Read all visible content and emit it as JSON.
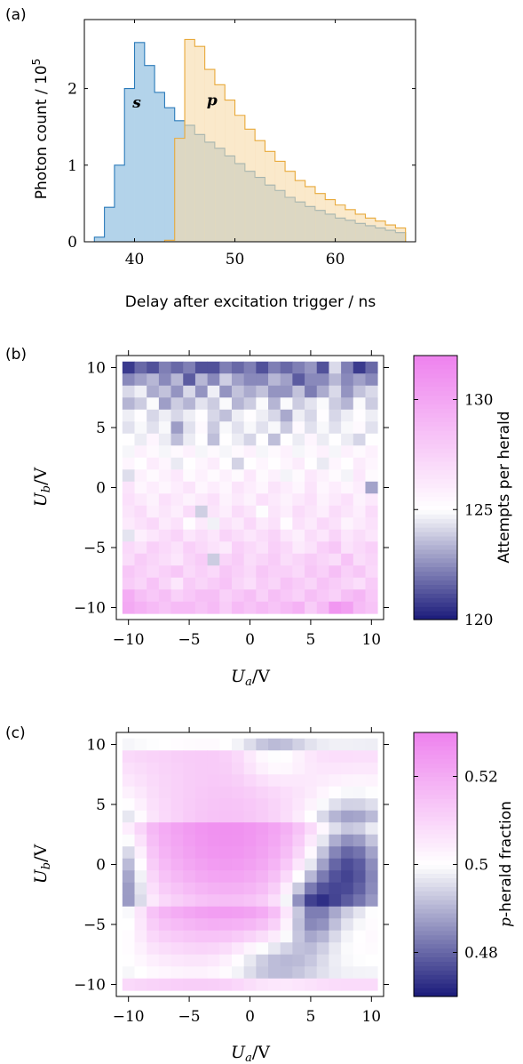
{
  "chart_data": [
    {
      "panel_label": "(a)",
      "type": "area",
      "xlabel": "Delay after excitation trigger / ns",
      "ylabel_base": "Photon count / 10",
      "ylabel_exp": "5",
      "xlim": [
        35,
        68
      ],
      "ylim": [
        0,
        2.9
      ],
      "xticks": [
        40,
        50,
        60
      ],
      "yticks": [
        0,
        1,
        2
      ],
      "bin_width": 1,
      "annotations": [
        "s",
        "p"
      ],
      "series": [
        {
          "name": "s",
          "color": "#2b7bba",
          "fill": "#b3d3ea",
          "bin_starts": [
            36,
            37,
            38,
            39,
            40,
            41,
            42,
            43,
            44,
            45,
            46,
            47,
            48,
            49,
            50,
            51,
            52,
            53,
            54,
            55,
            56,
            57,
            58,
            59,
            60,
            61,
            62,
            63,
            64,
            65,
            66
          ],
          "values": [
            0.06,
            0.45,
            1.0,
            2.0,
            2.6,
            2.3,
            1.95,
            1.75,
            1.58,
            1.52,
            1.4,
            1.3,
            1.22,
            1.12,
            1.02,
            0.92,
            0.84,
            0.74,
            0.67,
            0.58,
            0.52,
            0.46,
            0.41,
            0.36,
            0.31,
            0.28,
            0.24,
            0.21,
            0.18,
            0.15,
            0.12
          ]
        },
        {
          "name": "p",
          "color": "#e8a93a",
          "fill": "#f6dba8",
          "bin_starts": [
            43,
            44,
            45,
            46,
            47,
            48,
            49,
            50,
            51,
            52,
            53,
            54,
            55,
            56,
            57,
            58,
            59,
            60,
            61,
            62,
            63,
            64,
            65,
            66
          ],
          "values": [
            0.02,
            1.35,
            2.64,
            2.55,
            2.25,
            2.05,
            1.85,
            1.65,
            1.47,
            1.32,
            1.18,
            1.05,
            0.92,
            0.8,
            0.72,
            0.63,
            0.55,
            0.48,
            0.42,
            0.36,
            0.31,
            0.27,
            0.22,
            0.18
          ]
        }
      ]
    },
    {
      "panel_label": "(b)",
      "type": "heatmap",
      "xlabel_var": "U",
      "xlabel_sub": "a",
      "xlabel_unit": "/V",
      "ylabel_var": "U",
      "ylabel_sub": "b",
      "ylabel_unit": "/V",
      "xlim": [
        -11,
        11
      ],
      "ylim": [
        -11,
        11
      ],
      "xticks": [
        -10,
        -5,
        0,
        5,
        10
      ],
      "yticks": [
        -10,
        -5,
        0,
        5,
        10
      ],
      "tick_labels": [
        "−10",
        "−5",
        "0",
        "5",
        "10"
      ],
      "colorbar_label": "Attempts per herald",
      "colorbar_range": [
        120,
        132
      ],
      "colorbar_center": 125,
      "colorbar_ticks": [
        120,
        125,
        130
      ],
      "grid": {
        "rows": 21,
        "cols": 21,
        "x_start": -10,
        "y_start": 10,
        "step": 1,
        "baseline_top": 123.2,
        "baseline_bottom": 127.8,
        "offsets": [
          [
            -2.5,
            -1.5,
            -2,
            -1,
            -1.5,
            -1,
            -2,
            -2,
            -1,
            -1.5,
            -1,
            -2,
            -1,
            -1.5,
            -1,
            -0.5,
            -2,
            1,
            -1,
            -2.5,
            -1.5
          ],
          [
            -1,
            -0.5,
            0,
            -1,
            0,
            -2,
            0,
            -1,
            0.5,
            -0.5,
            -1,
            -1,
            0,
            -0.5,
            -2,
            -1,
            -1,
            0,
            -1,
            -0.5,
            -1
          ],
          [
            0.5,
            1,
            -0.5,
            0,
            -1,
            0.5,
            -1,
            1,
            -1,
            0,
            -0.5,
            0,
            -1,
            -1,
            0,
            -1.5,
            -0.5,
            0.5,
            -1,
            0,
            0.5
          ],
          [
            -0.5,
            0,
            1,
            -1,
            0,
            -0.5,
            0.5,
            0,
            1,
            -0.5,
            0,
            1,
            -0.5,
            1,
            0,
            0.5,
            1,
            0,
            -0.5,
            1,
            0
          ],
          [
            0.5,
            1,
            0,
            0.5,
            0,
            0.5,
            1,
            0,
            -0.5,
            0.5,
            1,
            0.5,
            0,
            -1,
            0.5,
            0,
            1,
            0,
            0.5,
            1,
            0.5
          ],
          [
            0,
            0.5,
            0,
            0.5,
            -1.5,
            0,
            1,
            -0.5,
            0.5,
            0,
            0.5,
            0,
            0.5,
            -0.5,
            1,
            0,
            0.5,
            0,
            0.5,
            1,
            0
          ],
          [
            0.5,
            0,
            1,
            0,
            -1,
            0,
            0.5,
            -1,
            0.5,
            0,
            -0.5,
            0.5,
            -1,
            0.5,
            0,
            1,
            0,
            0.5,
            0,
            -0.5,
            0.5
          ],
          [
            0,
            1,
            0.5,
            0,
            0.5,
            1,
            0,
            0.5,
            0,
            0.5,
            1,
            0,
            0.5,
            1,
            0,
            0.5,
            1,
            0,
            1,
            0.5,
            1
          ],
          [
            0.5,
            0,
            1,
            0.5,
            -0.5,
            0,
            0.5,
            1,
            0,
            -1,
            0,
            0.5,
            0,
            0.5,
            1,
            0,
            -0.5,
            0.5,
            0,
            1,
            0.5
          ],
          [
            -1,
            0.5,
            0,
            0.5,
            1,
            0,
            0.5,
            0,
            0.5,
            0,
            1,
            0,
            0.5,
            -0.5,
            0,
            1,
            0.5,
            0,
            -0.5,
            1,
            0
          ],
          [
            1,
            0,
            0.5,
            0,
            0.5,
            1,
            0,
            0.5,
            0,
            1,
            0.5,
            0,
            1,
            0.5,
            0,
            1,
            0,
            0.5,
            0,
            0.5,
            -2.5
          ],
          [
            1,
            0.5,
            0,
            1,
            0.5,
            0,
            0.5,
            1,
            0,
            0.5,
            0,
            1,
            0.5,
            0,
            0.5,
            1,
            0,
            0.5,
            1,
            0,
            0.5
          ],
          [
            0.5,
            1,
            0,
            0.5,
            0,
            1,
            -2,
            0.5,
            0,
            1,
            0.5,
            -1,
            0.5,
            0,
            1,
            0.5,
            0,
            1,
            0.5,
            0,
            1
          ],
          [
            0,
            0.5,
            1,
            0,
            0.5,
            -1,
            0,
            -1.5,
            0.5,
            0,
            1,
            0,
            0.5,
            -1,
            0.5,
            0,
            1,
            0.5,
            -0.5,
            0,
            0.5
          ],
          [
            -2,
            -0.5,
            0,
            0.5,
            1,
            0,
            0.5,
            0,
            1,
            0.5,
            0,
            0.5,
            1,
            0,
            -0.5,
            0.5,
            0,
            1,
            0,
            0.5,
            0
          ],
          [
            0.5,
            0,
            1,
            0.5,
            0,
            1,
            0.5,
            0,
            -0.5,
            1,
            0.5,
            0,
            1,
            0.5,
            -0.5,
            0,
            1,
            1.5,
            0,
            0.5,
            1
          ],
          [
            0,
            1,
            0.5,
            0,
            -0.5,
            0.5,
            1,
            -3,
            0.5,
            1,
            0,
            0.5,
            1,
            0,
            0.5,
            1,
            0.5,
            0,
            1.5,
            0,
            0.5
          ],
          [
            1,
            0.5,
            0,
            0.5,
            1,
            0,
            0.5,
            0,
            1,
            0.5,
            0,
            1,
            0.5,
            0.5,
            0,
            1,
            0.5,
            1.5,
            0.5,
            1,
            0
          ],
          [
            0.5,
            0,
            1,
            0,
            -1,
            0.5,
            0,
            0.5,
            1,
            0,
            -0.5,
            0.5,
            0,
            1,
            0.5,
            0,
            1,
            0.5,
            0,
            -0.5,
            0.5
          ],
          [
            2,
            1,
            0.5,
            1,
            0,
            0.5,
            1,
            1,
            0,
            0.5,
            1,
            0,
            1,
            0.5,
            0,
            1,
            0.5,
            0,
            1,
            1.5,
            0.5
          ],
          [
            2,
            1.5,
            1,
            0.5,
            1,
            1,
            0.5,
            1,
            0,
            1,
            0.5,
            1,
            0.5,
            1,
            1.5,
            0,
            1,
            3,
            2.5,
            1,
            0.5
          ]
        ]
      }
    },
    {
      "panel_label": "(c)",
      "type": "heatmap",
      "xlabel_var": "U",
      "xlabel_sub": "a",
      "xlabel_unit": "/V",
      "ylabel_var": "U",
      "ylabel_sub": "b",
      "ylabel_unit": "/V",
      "xlim": [
        -11,
        11
      ],
      "ylim": [
        -11,
        11
      ],
      "xticks": [
        -10,
        -5,
        0,
        5,
        10
      ],
      "yticks": [
        -10,
        -5,
        0,
        5,
        10
      ],
      "tick_labels": [
        "−10",
        "−5",
        "0",
        "5",
        "10"
      ],
      "colorbar_label_var": "p",
      "colorbar_label_rest": "-herald fraction",
      "colorbar_range": [
        0.47,
        0.53
      ],
      "colorbar_center": 0.5,
      "colorbar_ticks": [
        0.48,
        0.5,
        0.52
      ],
      "colorbar_tick_labels": [
        "0.48",
        "0.5",
        "0.52"
      ],
      "grid": {
        "rows": 21,
        "cols": 21,
        "x_start": -10,
        "y_start": 10,
        "step": 1,
        "center": [
          -2,
          0
        ],
        "sigma": 5.5,
        "peak": 0.524,
        "floor": 0.503,
        "dips": [
          {
            "x": 8,
            "y": 0,
            "sx": 2.2,
            "sy": 3.2,
            "depth": 0.03
          },
          {
            "x": 5,
            "y": -4,
            "sx": 1.5,
            "sy": 2.0,
            "depth": 0.026
          },
          {
            "x": 2,
            "y": -8,
            "sx": 2.5,
            "sy": 1.5,
            "depth": 0.014
          },
          {
            "x": -10,
            "y": -1,
            "sx": 1.0,
            "sy": 3.5,
            "depth": 0.02
          },
          {
            "x": 2,
            "y": 9,
            "sx": 2.0,
            "sy": 1.5,
            "depth": 0.012
          }
        ]
      }
    }
  ]
}
